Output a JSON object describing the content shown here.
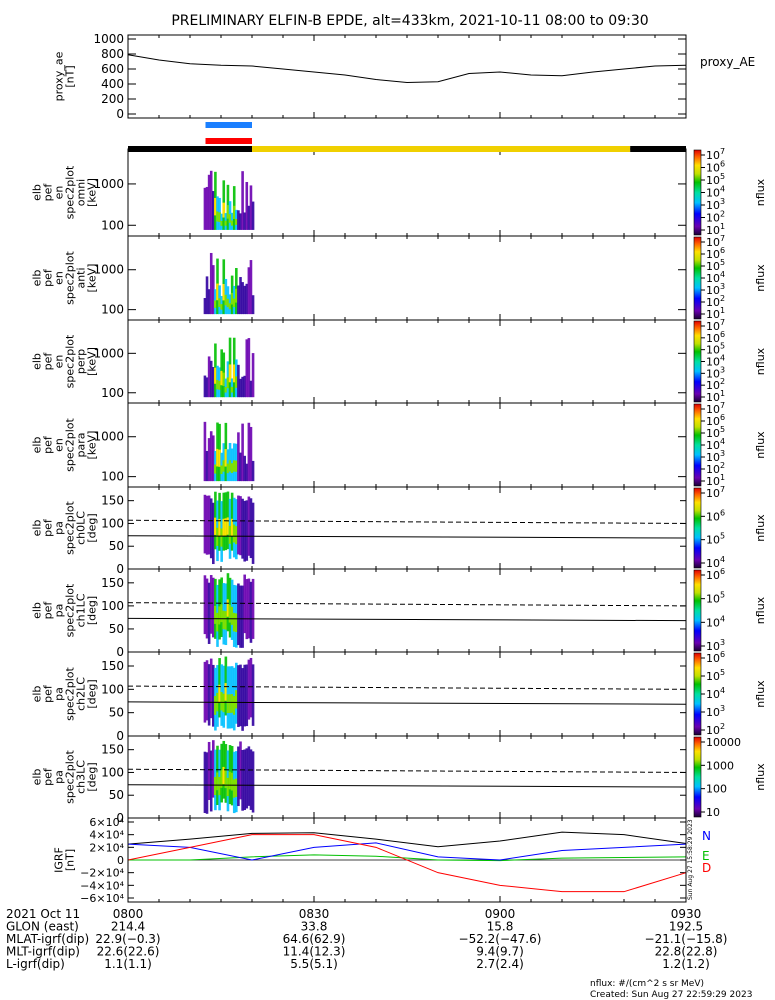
{
  "title": "PRELIMINARY ELFIN-B EPDE, alt=433km, 2021-10-11 08:00 to 09:30",
  "colors": {
    "background": "#ffffff",
    "axes": "#000000",
    "legend_blue": "#0000ff",
    "legend_green": "#00c000",
    "legend_red": "#ff0000",
    "bar_science": "#f0d000",
    "bar_black": "#000000",
    "ind_blue": "#1a7fff",
    "ind_red": "#ff0000"
  },
  "chart_data": [
    {
      "type": "line",
      "panel": "proxy_ae",
      "ylabel": [
        "proxy_ae",
        "[nT]"
      ],
      "ylim": [
        0,
        1000
      ],
      "yticks": [
        "1000",
        "800",
        "600",
        "400",
        "200",
        "0"
      ],
      "legend": "proxy_AE",
      "x_minutes": [
        0,
        5,
        10,
        15,
        20,
        25,
        30,
        35,
        40,
        45,
        50,
        55,
        60,
        65,
        70,
        75,
        80,
        85,
        90
      ],
      "values": [
        790,
        720,
        670,
        650,
        640,
        600,
        560,
        520,
        460,
        420,
        430,
        540,
        560,
        520,
        510,
        560,
        600,
        640,
        650
      ]
    },
    {
      "type": "heatmap",
      "panel": "spec_omni",
      "ylabel": [
        "elb",
        "pef",
        "en",
        "spec2plot",
        "omni",
        "[keV]"
      ],
      "yscale": "log",
      "yticks": [
        "1000",
        "100"
      ],
      "zlabel": "nflux",
      "zticks": [
        "10",
        "10",
        "10",
        "10",
        "10",
        "10",
        "10"
      ],
      "zexp": [
        "7",
        "6",
        "5",
        "4",
        "3",
        "2",
        "1"
      ]
    },
    {
      "type": "heatmap",
      "panel": "spec_anti",
      "ylabel": [
        "elb",
        "pef",
        "en",
        "spec2plot",
        "anti",
        "[keV]"
      ],
      "yscale": "log",
      "yticks": [
        "1000",
        "100"
      ],
      "zlabel": "nflux",
      "zticks": [
        "10",
        "10",
        "10",
        "10",
        "10",
        "10",
        "10"
      ],
      "zexp": [
        "7",
        "6",
        "5",
        "4",
        "3",
        "2",
        "1"
      ]
    },
    {
      "type": "heatmap",
      "panel": "spec_perp",
      "ylabel": [
        "elb",
        "pef",
        "en",
        "spec2plot",
        "perp",
        "[keV]"
      ],
      "yscale": "log",
      "yticks": [
        "1000",
        "100"
      ],
      "zlabel": "nflux",
      "zticks": [
        "10",
        "10",
        "10",
        "10",
        "10",
        "10",
        "10"
      ],
      "zexp": [
        "7",
        "6",
        "5",
        "4",
        "3",
        "2",
        "1"
      ]
    },
    {
      "type": "heatmap",
      "panel": "spec_para",
      "ylabel": [
        "elb",
        "pef",
        "en",
        "spec2plot",
        "para",
        "[keV]"
      ],
      "yscale": "log",
      "yticks": [
        "1000",
        "100"
      ],
      "zlabel": "nflux",
      "zticks": [
        "10",
        "10",
        "10",
        "10",
        "10",
        "10",
        "10"
      ],
      "zexp": [
        "7",
        "6",
        "5",
        "4",
        "3",
        "2",
        "1"
      ]
    },
    {
      "type": "heatmap",
      "panel": "pa_ch0",
      "ylabel": [
        "elb",
        "pef",
        "pa",
        "spec2plot",
        "ch0LC",
        "[deg]"
      ],
      "ylim": [
        0,
        180
      ],
      "yticks": [
        "150",
        "100",
        "50",
        "0"
      ],
      "zlabel": "nflux",
      "zticks": [
        "10",
        "10",
        "10",
        "10"
      ],
      "zexp": [
        "7",
        "6",
        "5",
        "4"
      ]
    },
    {
      "type": "heatmap",
      "panel": "pa_ch1",
      "ylabel": [
        "elb",
        "pef",
        "pa",
        "spec2plot",
        "ch1LC",
        "[deg]"
      ],
      "ylim": [
        0,
        180
      ],
      "yticks": [
        "150",
        "100",
        "50",
        "0"
      ],
      "zlabel": "nflux",
      "zticks": [
        "10",
        "10",
        "10",
        "10"
      ],
      "zexp": [
        "6",
        "5",
        "4",
        "3"
      ]
    },
    {
      "type": "heatmap",
      "panel": "pa_ch2",
      "ylabel": [
        "elb",
        "pef",
        "pa",
        "spec2plot",
        "ch2LC",
        "[deg]"
      ],
      "ylim": [
        0,
        180
      ],
      "yticks": [
        "150",
        "100",
        "50",
        "0"
      ],
      "zlabel": "nflux",
      "zticks": [
        "10",
        "10",
        "10",
        "10",
        "10"
      ],
      "zexp": [
        "6",
        "5",
        "4",
        "3",
        "2"
      ]
    },
    {
      "type": "heatmap",
      "panel": "pa_ch3",
      "ylabel": [
        "elb",
        "pef",
        "pa",
        "spec2plot",
        "ch3LC",
        "[deg]"
      ],
      "ylim": [
        0,
        180
      ],
      "yticks": [
        "150",
        "100",
        "50",
        "0"
      ],
      "zlabel": "nflux",
      "zticks": [
        "10000",
        "1000",
        "100",
        "10"
      ]
    },
    {
      "type": "line",
      "panel": "igrf",
      "ylabel": [
        "IGRF",
        "[nT]"
      ],
      "ylim": [
        -60000,
        60000
      ],
      "yticks": [
        "6×10⁴",
        "4×10⁴",
        "2×10⁴",
        "0",
        "−2×10⁴",
        "−4×10⁴",
        "−6×10⁴"
      ],
      "x_minutes": [
        0,
        10,
        20,
        30,
        40,
        50,
        60,
        70,
        80,
        90
      ],
      "series": [
        {
          "name": "N",
          "color": "#000000",
          "values": [
            25000,
            33000,
            42000,
            43000,
            33000,
            21000,
            30000,
            44000,
            40000,
            26000
          ]
        },
        {
          "name": "E",
          "color": "#0000ff",
          "values": [
            25000,
            20000,
            0,
            20000,
            27000,
            5000,
            0,
            15000,
            20000,
            25000
          ]
        },
        {
          "name": "D",
          "color": "#ff0000",
          "values": [
            0,
            20000,
            40000,
            40000,
            20000,
            -20000,
            -40000,
            -50000,
            -50000,
            -20000
          ]
        }
      ],
      "extra_series": {
        "color": "#00c000",
        "values": [
          0,
          0,
          5000,
          8000,
          6000,
          0,
          -1000,
          3000,
          4000,
          5000
        ]
      }
    }
  ],
  "x_axis": {
    "ticks": [
      "0800",
      "0830",
      "0900",
      "0930"
    ],
    "rows": [
      {
        "label": "2021 Oct 11",
        "values": [
          "0800",
          "0830",
          "0900",
          "0930"
        ]
      },
      {
        "label": "GLON (east)",
        "values": [
          "214.4",
          "33.8",
          "15.8",
          "192.5"
        ]
      },
      {
        "label": "MLAT-igrf(dip)",
        "values": [
          "22.9(−0.3)",
          "64.6(62.9)",
          "−52.2(−47.6)",
          "−21.1(−15.8)"
        ]
      },
      {
        "label": "MLT-igrf(dip)",
        "values": [
          "22.6(22.6)",
          "11.4(12.3)",
          "9.4(9.7)",
          "22.8(22.8)"
        ]
      },
      {
        "label": "L-igrf(dip)",
        "values": [
          "1.1(1.1)",
          "5.5(5.1)",
          "2.7(2.4)",
          "1.2(1.2)"
        ]
      }
    ]
  },
  "footer": {
    "units": "nflux: #/(cm^2 s sr MeV)",
    "created": "Created: Sun Aug 27 22:59:29 2023",
    "stamp": "Sun Aug 27 15:58:29 2023"
  }
}
